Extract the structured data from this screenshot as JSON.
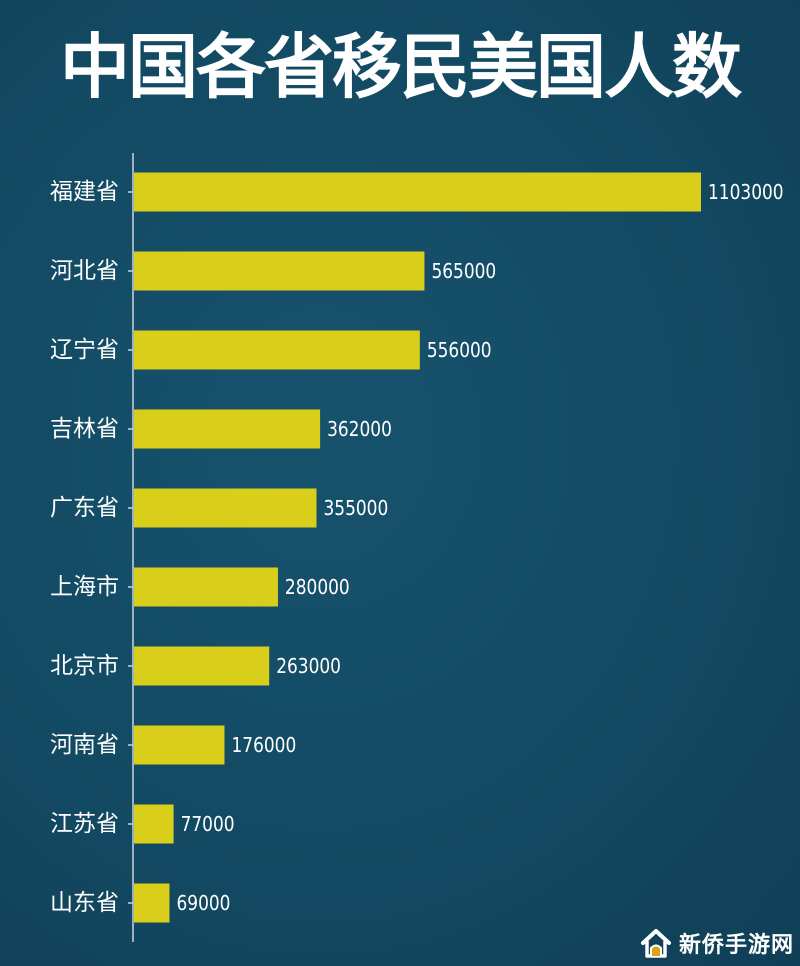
{
  "title": "中国各省移民美国人数",
  "chart_data": {
    "type": "bar",
    "orientation": "horizontal",
    "title": "中国各省移民美国人数",
    "categories": [
      "福建省",
      "河北省",
      "辽宁省",
      "吉林省",
      "广东省",
      "上海市",
      "北京市",
      "河南省",
      "江苏省",
      "山东省"
    ],
    "values": [
      1103000,
      565000,
      556000,
      362000,
      355000,
      280000,
      263000,
      176000,
      77000,
      69000
    ],
    "value_labels": [
      "1103000",
      "565000",
      "556000",
      "362000",
      "355000",
      "280000",
      "263000",
      "176000",
      "77000",
      "69000"
    ],
    "xlabel": "",
    "ylabel": "",
    "xlim": [
      0,
      1103000
    ],
    "grid": false,
    "legend": "none",
    "colors": {
      "bar": "#d9cf1a",
      "axis": "#c9d3da",
      "text": "#ffffff",
      "background": "#134a63"
    }
  },
  "watermark": {
    "text": "新侨手游网",
    "icon": "house-logo-icon"
  }
}
